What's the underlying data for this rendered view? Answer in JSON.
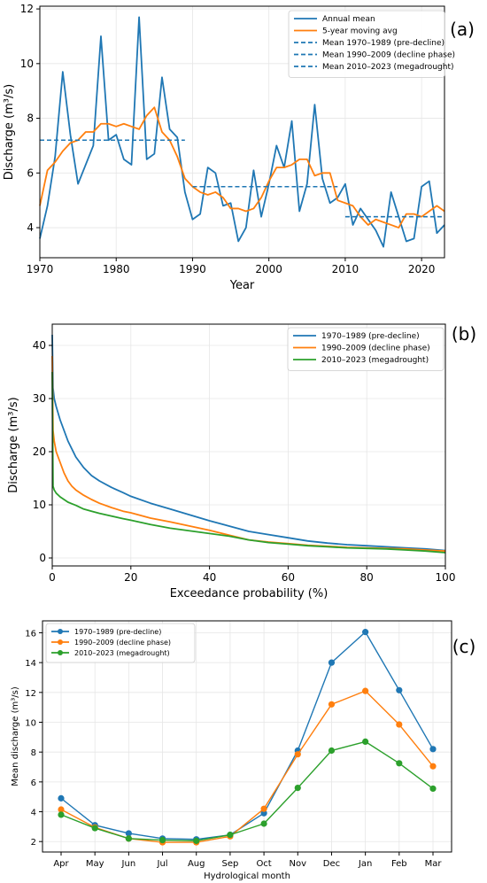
{
  "chart_data": [
    {
      "type": "line",
      "panel_label": "(a)",
      "xlabel": "Year",
      "ylabel": "Discharge (m³/s)",
      "xlim": [
        1970,
        2023
      ],
      "ylim": [
        2.9,
        12.1
      ],
      "xticks": [
        1970,
        1980,
        1990,
        2000,
        2010,
        2020
      ],
      "yticks": [
        4,
        6,
        8,
        10,
        12
      ],
      "grid": true,
      "legend_position": "top-right",
      "x": [
        1970,
        1971,
        1972,
        1973,
        1974,
        1975,
        1976,
        1977,
        1978,
        1979,
        1980,
        1981,
        1982,
        1983,
        1984,
        1985,
        1986,
        1987,
        1988,
        1989,
        1990,
        1991,
        1992,
        1993,
        1994,
        1995,
        1996,
        1997,
        1998,
        1999,
        2000,
        2001,
        2002,
        2003,
        2004,
        2005,
        2006,
        2007,
        2008,
        2009,
        2010,
        2011,
        2012,
        2013,
        2014,
        2015,
        2016,
        2017,
        2018,
        2019,
        2020,
        2021,
        2022,
        2023
      ],
      "series": [
        {
          "name": "Annual mean",
          "color": "#1f77b4",
          "values": [
            3.6,
            4.8,
            6.6,
            9.7,
            7.4,
            5.6,
            6.3,
            7.0,
            11.0,
            7.2,
            7.4,
            6.5,
            6.3,
            11.7,
            6.5,
            6.7,
            9.5,
            7.6,
            7.3,
            5.3,
            4.3,
            4.5,
            6.2,
            6.0,
            4.8,
            4.9,
            3.5,
            4.0,
            6.1,
            4.4,
            5.6,
            7.0,
            6.2,
            7.9,
            4.6,
            5.6,
            8.5,
            5.8,
            4.9,
            5.1,
            5.6,
            4.1,
            4.7,
            4.3,
            3.9,
            3.3,
            5.3,
            4.4,
            3.5,
            3.6,
            5.5,
            5.7,
            3.8,
            4.1
          ]
        },
        {
          "name": "5-year moving avg",
          "color": "#ff7f0e",
          "values": [
            4.8,
            6.1,
            6.4,
            6.8,
            7.1,
            7.2,
            7.5,
            7.5,
            7.8,
            7.8,
            7.7,
            7.8,
            7.7,
            7.6,
            8.1,
            8.4,
            7.5,
            7.2,
            6.6,
            5.8,
            5.5,
            5.3,
            5.2,
            5.3,
            5.1,
            4.7,
            4.7,
            4.6,
            4.7,
            5.1,
            5.7,
            6.2,
            6.2,
            6.3,
            6.5,
            6.5,
            5.9,
            6.0,
            6.0,
            5.0,
            4.9,
            4.8,
            4.4,
            4.1,
            4.3,
            4.2,
            4.1,
            4.0,
            4.5,
            4.5,
            4.4,
            4.6,
            4.8,
            4.6
          ]
        },
        {
          "name": "Mean 1970–1989 (pre-decline)",
          "color": "#1f77b4",
          "style": "dashed",
          "x_range": [
            1970,
            1989
          ],
          "value": 7.2
        },
        {
          "name": "Mean 1990–2009 (decline phase)",
          "color": "#1f77b4",
          "style": "dashed",
          "x_range": [
            1990,
            2009
          ],
          "value": 5.5
        },
        {
          "name": "Mean 2010–2023 (megadrought)",
          "color": "#1f77b4",
          "style": "dashed",
          "x_range": [
            2010,
            2023
          ],
          "value": 4.4
        }
      ]
    },
    {
      "type": "line",
      "panel_label": "(b)",
      "xlabel": "Exceedance probability (%)",
      "ylabel": "Discharge (m³/s)",
      "xlim": [
        0,
        100
      ],
      "ylim": [
        -1.5,
        44
      ],
      "xticks": [
        0,
        20,
        40,
        60,
        80,
        100
      ],
      "yticks": [
        0,
        10,
        20,
        30,
        40
      ],
      "grid": true,
      "legend_position": "top-right",
      "x": [
        0,
        0.2,
        0.5,
        1,
        2,
        3,
        4,
        5,
        6,
        8,
        10,
        12,
        15,
        18,
        20,
        25,
        30,
        35,
        40,
        45,
        50,
        55,
        60,
        65,
        70,
        75,
        80,
        85,
        90,
        95,
        100
      ],
      "series": [
        {
          "name": "1970–1989 (pre-decline)",
          "color": "#1f77b4",
          "values": [
            42,
            32,
            30,
            28.5,
            26,
            24,
            22,
            20.5,
            19,
            17,
            15.5,
            14.5,
            13.3,
            12.3,
            11.6,
            10.3,
            9.2,
            8.1,
            7,
            6,
            5,
            4.4,
            3.8,
            3.2,
            2.8,
            2.5,
            2.3,
            2.1,
            1.9,
            1.7,
            1.4
          ]
        },
        {
          "name": "1990–2009 (decline phase)",
          "color": "#ff7f0e",
          "values": [
            38,
            24,
            22,
            20,
            18,
            16,
            14.5,
            13.5,
            12.8,
            11.8,
            11,
            10.3,
            9.5,
            8.8,
            8.5,
            7.5,
            6.8,
            6,
            5.2,
            4.3,
            3.4,
            3,
            2.7,
            2.4,
            2.2,
            2,
            1.9,
            1.8,
            1.7,
            1.5,
            1.3
          ]
        },
        {
          "name": "2010–2023 (megadrought)",
          "color": "#2ca02c",
          "values": [
            35,
            13.5,
            12.8,
            12.2,
            11.5,
            11,
            10.5,
            10.2,
            9.9,
            9.2,
            8.8,
            8.4,
            7.9,
            7.4,
            7.1,
            6.3,
            5.6,
            5.1,
            4.6,
            4.1,
            3.4,
            2.9,
            2.6,
            2.3,
            2.1,
            1.9,
            1.8,
            1.7,
            1.5,
            1.3,
            1
          ]
        }
      ]
    },
    {
      "type": "line",
      "panel_label": "(c)",
      "xlabel": "Hydrological month",
      "ylabel": "Mean discharge (m³/s)",
      "ylim": [
        1.3,
        16.8
      ],
      "yticks": [
        2,
        4,
        6,
        8,
        10,
        12,
        14,
        16
      ],
      "grid": true,
      "legend_position": "top-left",
      "categories": [
        "Apr",
        "May",
        "Jun",
        "Jul",
        "Aug",
        "Sep",
        "Oct",
        "Nov",
        "Dec",
        "Jan",
        "Feb",
        "Mar"
      ],
      "series": [
        {
          "name": "1970–1989 (pre-decline)",
          "color": "#1f77b4",
          "values": [
            4.9,
            3.1,
            2.55,
            2.2,
            2.15,
            2.45,
            3.9,
            8.1,
            14.0,
            16.05,
            12.15,
            8.2
          ]
        },
        {
          "name": "1990–2009 (decline phase)",
          "color": "#ff7f0e",
          "values": [
            4.15,
            2.95,
            2.2,
            1.95,
            1.95,
            2.35,
            4.2,
            7.85,
            11.2,
            12.1,
            9.85,
            7.05
          ]
        },
        {
          "name": "2010–2023 (megadrought)",
          "color": "#2ca02c",
          "values": [
            3.8,
            2.9,
            2.2,
            2.1,
            2.05,
            2.45,
            3.2,
            5.6,
            8.1,
            8.7,
            7.25,
            5.55
          ]
        }
      ]
    }
  ]
}
